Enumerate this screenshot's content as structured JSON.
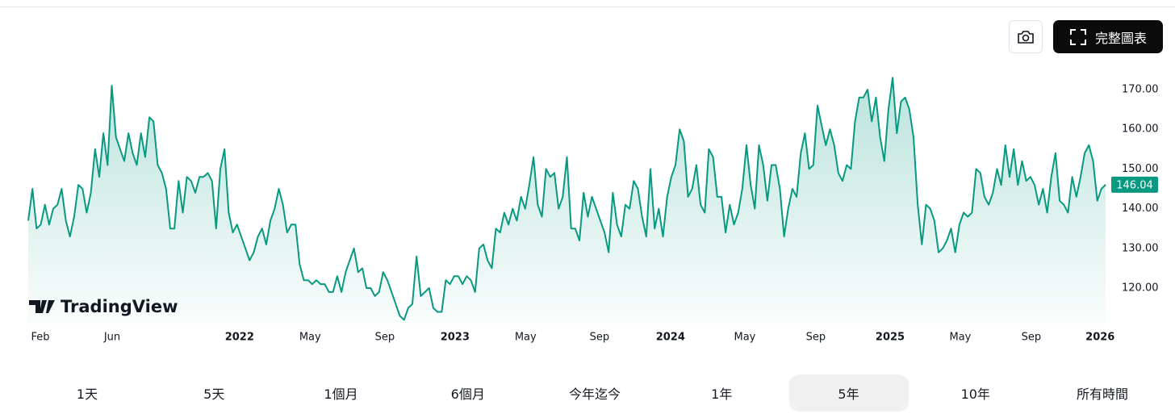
{
  "chart_data": {
    "type": "line",
    "color": "#089981",
    "values": [
      137,
      145,
      135,
      136,
      141,
      136,
      140,
      141,
      145,
      137,
      133,
      138,
      146,
      145,
      139,
      144,
      155,
      148,
      159,
      151,
      171,
      158,
      155,
      152,
      159,
      154,
      151,
      159,
      153,
      163,
      162,
      151,
      149,
      145,
      135,
      135,
      147,
      139,
      148,
      147,
      144,
      148,
      148,
      149,
      147,
      135,
      150,
      155,
      139,
      134,
      136,
      133,
      130,
      127,
      129,
      133,
      135,
      131,
      137,
      140,
      145,
      141,
      134,
      136,
      136,
      126,
      122,
      122,
      121,
      122,
      121,
      121,
      119,
      119,
      123,
      119,
      124,
      127,
      130,
      124,
      125,
      120,
      120,
      118,
      119,
      124,
      122,
      119,
      116,
      113,
      112,
      115,
      116,
      128,
      118,
      119,
      120,
      115,
      114,
      114,
      122,
      121,
      123,
      123,
      121,
      123,
      122,
      119,
      130,
      131,
      127,
      125,
      135,
      134,
      139,
      136,
      140,
      137,
      143,
      140,
      146,
      153,
      141,
      138,
      150,
      148,
      149,
      140,
      143,
      153,
      135,
      135,
      132,
      144,
      138,
      143,
      140,
      137,
      134,
      129,
      144,
      136,
      133,
      141,
      140,
      147,
      145,
      138,
      133,
      150,
      135,
      140,
      133,
      143,
      148,
      151,
      160,
      157,
      143,
      145,
      151,
      141,
      139,
      155,
      153,
      143,
      143,
      134,
      141,
      136,
      139,
      145,
      156,
      146,
      140,
      156,
      151,
      142,
      151,
      151,
      145,
      133,
      140,
      145,
      143,
      154,
      159,
      150,
      151,
      166,
      161,
      156,
      160,
      156,
      149,
      147,
      151,
      150,
      162,
      168,
      168,
      170,
      162,
      168,
      158,
      152,
      165,
      173,
      159,
      167,
      168,
      165,
      158,
      141,
      131,
      141,
      140,
      137,
      129,
      130,
      132,
      135,
      129,
      136,
      139,
      138,
      139,
      150,
      149,
      143,
      141,
      144,
      150,
      146,
      156,
      148,
      155,
      146,
      152,
      147,
      148,
      146,
      141,
      145,
      139,
      148,
      154,
      142,
      141,
      139,
      148,
      143,
      148,
      154,
      156,
      152,
      142,
      145,
      146.04
    ],
    "xlim": [
      0,
      258
    ],
    "xticks": [
      {
        "value": 2.9,
        "label": "Feb"
      },
      {
        "value": 20.1,
        "label": "Jun"
      },
      {
        "value": 50.6,
        "label": "2022"
      },
      {
        "value": 67.5,
        "label": "May"
      },
      {
        "value": 85.4,
        "label": "Sep"
      },
      {
        "value": 102.2,
        "label": "2023"
      },
      {
        "value": 119.1,
        "label": "May"
      },
      {
        "value": 136.8,
        "label": "Sep"
      },
      {
        "value": 153.8,
        "label": "2024"
      },
      {
        "value": 171.6,
        "label": "May"
      },
      {
        "value": 188.6,
        "label": "Sep"
      },
      {
        "value": 206.4,
        "label": "2025"
      },
      {
        "value": 223.2,
        "label": "May"
      },
      {
        "value": 240.2,
        "label": "Sep"
      },
      {
        "value": 256.7,
        "label": "2026"
      }
    ],
    "ylim": [
      111,
      175
    ],
    "yticks": [
      {
        "value": 120,
        "label": "120.00"
      },
      {
        "value": 130,
        "label": "130.00"
      },
      {
        "value": 140,
        "label": "140.00"
      },
      {
        "value": 150,
        "label": "150.00"
      },
      {
        "value": 160,
        "label": "160.00"
      },
      {
        "value": 170,
        "label": "170.00"
      }
    ]
  },
  "ui": {
    "logo": "TradingView",
    "full_chart_button": "完整圖表",
    "ranges": [
      "1天",
      "5天",
      "1個月",
      "6個月",
      "今年迄今",
      "1年",
      "5年",
      "10年",
      "所有時間"
    ],
    "selected_range": 6
  }
}
